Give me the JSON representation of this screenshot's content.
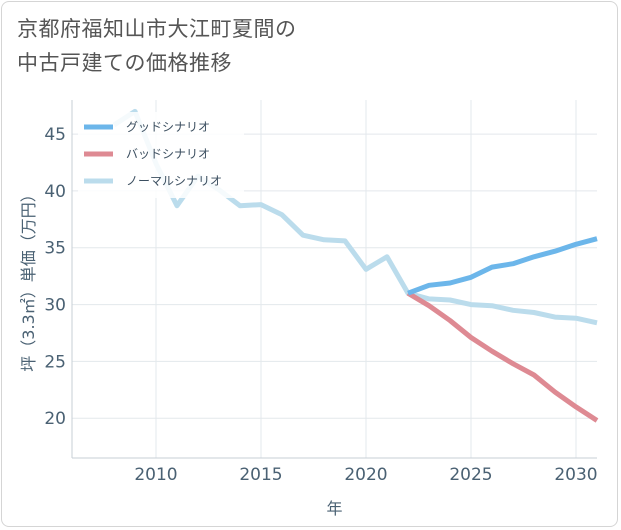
{
  "title_lines": [
    "京都府福知山市大江町夏間の",
    "中古戸建ての価格推移"
  ],
  "chart_data": {
    "type": "line",
    "title": "京都府福知山市大江町夏間の中古戸建ての価格推移",
    "xlabel": "年",
    "ylabel": "坪（3.3㎡）単価（万円）",
    "xlim": [
      2006,
      2031
    ],
    "ylim": [
      16.5,
      48
    ],
    "xticks": [
      2010,
      2015,
      2020,
      2025,
      2030
    ],
    "yticks": [
      20,
      25,
      30,
      35,
      40,
      45
    ],
    "grid": true,
    "legend_position": "top-left",
    "series": [
      {
        "name": "グッドシナリオ",
        "color": "#6cb6ea",
        "x": [
          2022,
          2023,
          2024,
          2025,
          2026,
          2027,
          2028,
          2029,
          2030,
          2031
        ],
        "y": [
          31.0,
          31.7,
          31.9,
          32.4,
          33.3,
          33.6,
          34.2,
          34.7,
          35.3,
          35.8
        ]
      },
      {
        "name": "バッドシナリオ",
        "color": "#de8a93",
        "x": [
          2022,
          2023,
          2024,
          2025,
          2026,
          2027,
          2028,
          2029,
          2030,
          2031
        ],
        "y": [
          31.0,
          29.9,
          28.6,
          27.1,
          25.9,
          24.8,
          23.8,
          22.3,
          21.0,
          19.8
        ]
      },
      {
        "name": "ノーマルシナリオ",
        "color": "#bbdcec",
        "x": [
          2008,
          2009,
          2010,
          2011,
          2012,
          2013,
          2014,
          2015,
          2016,
          2017,
          2018,
          2019,
          2020,
          2021,
          2022,
          2023,
          2024,
          2025,
          2026,
          2027,
          2028,
          2029,
          2030,
          2031
        ],
        "y": [
          45.8,
          47.0,
          42.4,
          38.7,
          41.3,
          40.1,
          38.7,
          38.8,
          37.9,
          36.1,
          35.7,
          35.6,
          33.1,
          34.2,
          31.0,
          30.5,
          30.4,
          30.0,
          29.9,
          29.5,
          29.3,
          28.9,
          28.8,
          28.4
        ]
      }
    ]
  }
}
